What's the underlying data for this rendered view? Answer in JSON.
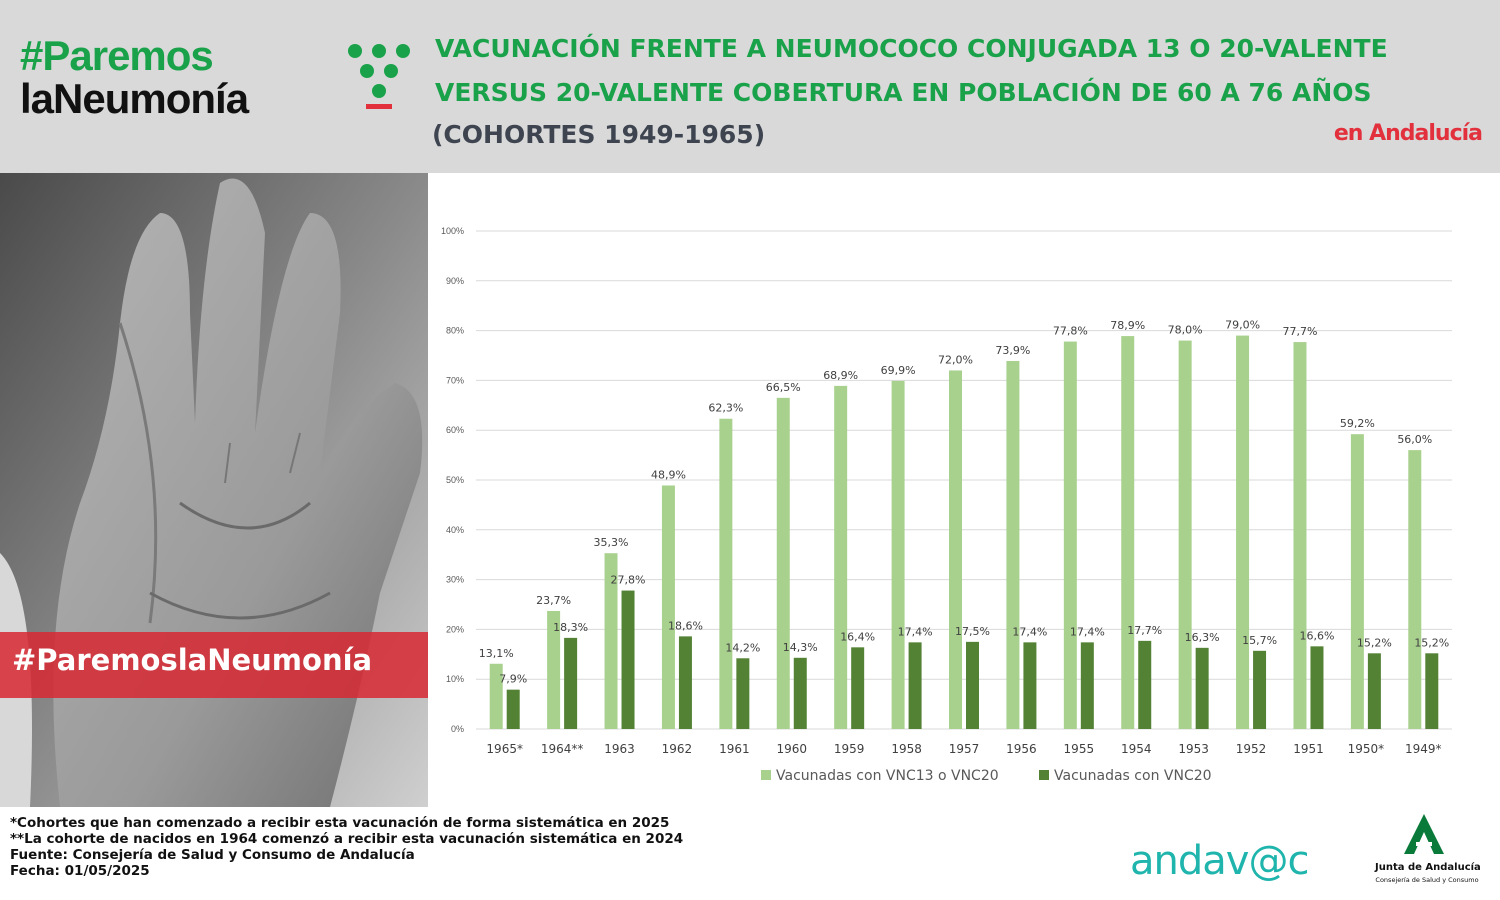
{
  "header": {
    "logo_line1": "#Paremos",
    "logo_line2": "laNeumonía",
    "title_line1": "VACUNACIÓN FRENTE A NEUMOCOCO CONJUGADA 13 O 20-VALENTE",
    "title_line2": "VERSUS 20-VALENTE COBERTURA EN POBLACIÓN DE 60 A 76 AÑOS",
    "title_line3": "(COHORTES 1949-1965)",
    "region": "en Andalucía"
  },
  "photo": {
    "hashtag": "#ParemoslaNeumonía"
  },
  "chart_data": {
    "type": "bar",
    "categories": [
      "1965*",
      "1964**",
      "1963",
      "1962",
      "1961",
      "1960",
      "1959",
      "1958",
      "1957",
      "1956",
      "1955",
      "1954",
      "1953",
      "1952",
      "1951",
      "1950*",
      "1949*"
    ],
    "series": [
      {
        "name": "Vacunadas con VNC13 o VNC20",
        "color": "#a9d18e",
        "values": [
          13.1,
          23.7,
          35.3,
          48.9,
          62.3,
          66.5,
          68.9,
          69.9,
          72.0,
          73.9,
          77.8,
          78.9,
          78.0,
          79.0,
          77.7,
          59.2,
          56.0
        ],
        "labels": [
          "13,1%",
          "23,7%",
          "35,3%",
          "48,9%",
          "62,3%",
          "66,5%",
          "68,9%",
          "69,9%",
          "72,0%",
          "73,9%",
          "77,8%",
          "78,9%",
          "78,0%",
          "79,0%",
          "77,7%",
          "59,2%",
          "56,0%"
        ]
      },
      {
        "name": "Vacunadas con VNC20",
        "color": "#548235",
        "values": [
          7.9,
          18.3,
          27.8,
          18.6,
          14.2,
          14.3,
          16.4,
          17.4,
          17.5,
          17.4,
          17.4,
          17.7,
          16.3,
          15.7,
          16.6,
          15.2,
          15.2
        ],
        "labels": [
          "7,9%",
          "18,3%",
          "27,8%",
          "18,6%",
          "14,2%",
          "14,3%",
          "16,4%",
          "17,4%",
          "17,5%",
          "17,4%",
          "17,4%",
          "17,7%",
          "16,3%",
          "15,7%",
          "16,6%",
          "15,2%",
          "15,2%"
        ]
      }
    ],
    "yticks": [
      "0%",
      "10%",
      "20%",
      "30%",
      "40%",
      "50%",
      "60%",
      "70%",
      "80%",
      "90%",
      "100%"
    ],
    "ylim": [
      0,
      100
    ],
    "grid": true,
    "legend": "bottom"
  },
  "footnotes": {
    "note1": "*Cohortes que han comenzado a recibir esta vacunación de forma sistemática en 2025",
    "note2": "**La cohorte de nacidos en 1964 comenzó a recibir esta vacunación sistemática en 2024",
    "source": "Fuente: Consejería de Salud y Consumo de Andalucía",
    "date": "Fecha: 01/05/2025"
  },
  "logos": {
    "andavac": "andav@c",
    "junta_name": "Junta de Andalucía",
    "junta_sub": "Consejería de Salud y Consumo"
  },
  "colors": {
    "brand_green": "#1aa24a",
    "accent_red": "#e2303c",
    "andavac_teal": "#1fb5ad"
  }
}
